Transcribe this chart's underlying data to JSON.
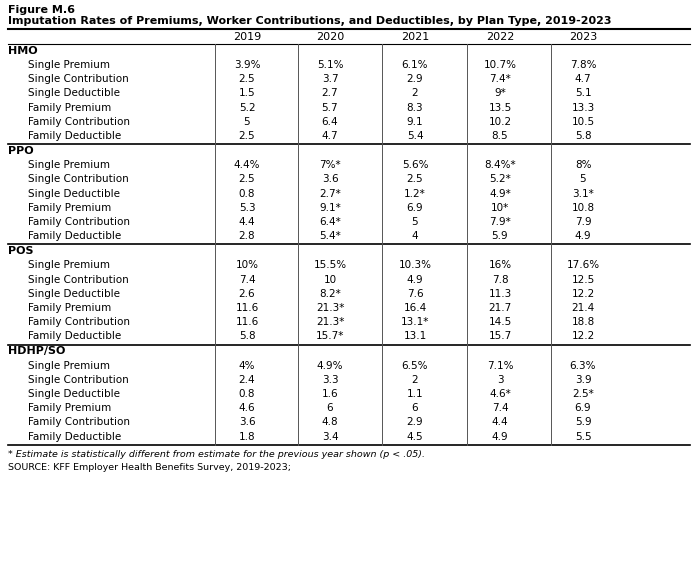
{
  "title_line1": "Figure M.6",
  "title_line2": "Imputation Rates of Premiums, Worker Contributions, and Deductibles, by Plan Type, 2019-2023",
  "years": [
    "2019",
    "2020",
    "2021",
    "2022",
    "2023"
  ],
  "sections": [
    {
      "header": "HMO",
      "rows": [
        [
          "Single Premium",
          "3.9%",
          "5.1%",
          "6.1%",
          "10.7%",
          "7.8%"
        ],
        [
          "Single Contribution",
          "2.5",
          "3.7",
          "2.9",
          "7.4*",
          "4.7"
        ],
        [
          "Single Deductible",
          "1.5",
          "2.7",
          "2",
          "9*",
          "5.1"
        ],
        [
          "Family Premium",
          "5.2",
          "5.7",
          "8.3",
          "13.5",
          "13.3"
        ],
        [
          "Family Contribution",
          "5",
          "6.4",
          "9.1",
          "10.2",
          "10.5"
        ],
        [
          "Family Deductible",
          "2.5",
          "4.7",
          "5.4",
          "8.5",
          "5.8"
        ]
      ]
    },
    {
      "header": "PPO",
      "rows": [
        [
          "Single Premium",
          "4.4%",
          "7%*",
          "5.6%",
          "8.4%*",
          "8%"
        ],
        [
          "Single Contribution",
          "2.5",
          "3.6",
          "2.5",
          "5.2*",
          "5"
        ],
        [
          "Single Deductible",
          "0.8",
          "2.7*",
          "1.2*",
          "4.9*",
          "3.1*"
        ],
        [
          "Family Premium",
          "5.3",
          "9.1*",
          "6.9",
          "10*",
          "10.8"
        ],
        [
          "Family Contribution",
          "4.4",
          "6.4*",
          "5",
          "7.9*",
          "7.9"
        ],
        [
          "Family Deductible",
          "2.8",
          "5.4*",
          "4",
          "5.9",
          "4.9"
        ]
      ]
    },
    {
      "header": "POS",
      "rows": [
        [
          "Single Premium",
          "10%",
          "15.5%",
          "10.3%",
          "16%",
          "17.6%"
        ],
        [
          "Single Contribution",
          "7.4",
          "10",
          "4.9",
          "7.8",
          "12.5"
        ],
        [
          "Single Deductible",
          "2.6",
          "8.2*",
          "7.6",
          "11.3",
          "12.2"
        ],
        [
          "Family Premium",
          "11.6",
          "21.3*",
          "16.4",
          "21.7",
          "21.4"
        ],
        [
          "Family Contribution",
          "11.6",
          "21.3*",
          "13.1*",
          "14.5",
          "18.8"
        ],
        [
          "Family Deductible",
          "5.8",
          "15.7*",
          "13.1",
          "15.7",
          "12.2"
        ]
      ]
    },
    {
      "header": "HDHP/SO",
      "rows": [
        [
          "Single Premium",
          "4%",
          "4.9%",
          "6.5%",
          "7.1%",
          "6.3%"
        ],
        [
          "Single Contribution",
          "2.4",
          "3.3",
          "2",
          "3",
          "3.9"
        ],
        [
          "Single Deductible",
          "0.8",
          "1.6",
          "1.1",
          "4.6*",
          "2.5*"
        ],
        [
          "Family Premium",
          "4.6",
          "6",
          "6",
          "7.4",
          "6.9"
        ],
        [
          "Family Contribution",
          "3.6",
          "4.8",
          "2.9",
          "4.4",
          "5.9"
        ],
        [
          "Family Deductible",
          "1.8",
          "3.4",
          "4.5",
          "4.9",
          "5.5"
        ]
      ]
    }
  ],
  "footnote": "* Estimate is statistically different from estimate for the previous year shown (p < .05).",
  "source": "SOURCE: KFF Employer Health Benefits Survey, 2019-2023;"
}
